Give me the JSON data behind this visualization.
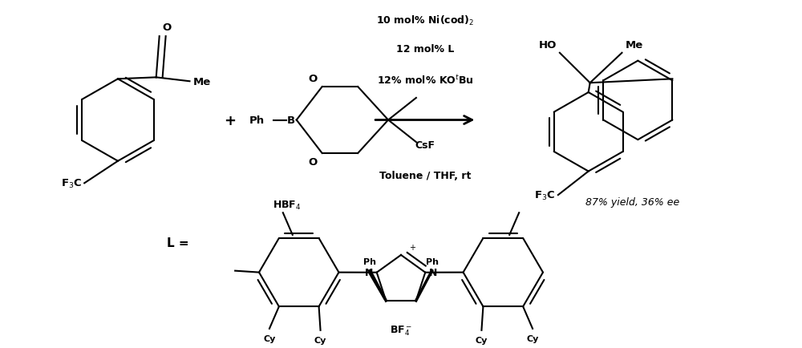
{
  "bg": "#ffffff",
  "fw": 10.0,
  "fh": 4.35,
  "dpi": 100,
  "lw": 1.5,
  "fs": 9.5,
  "fs_small": 8.5,
  "fs_large": 11,
  "c": "black",
  "cond1": "10 mol% Ni(cod)",
  "cond2": "12 mol% L",
  "cond3": "12% mol% KO",
  "cond4": "CsF",
  "cond5": "Toluene / THF, rt",
  "yield_text": "87% yield, 36% ee",
  "ligand_label": "L ="
}
